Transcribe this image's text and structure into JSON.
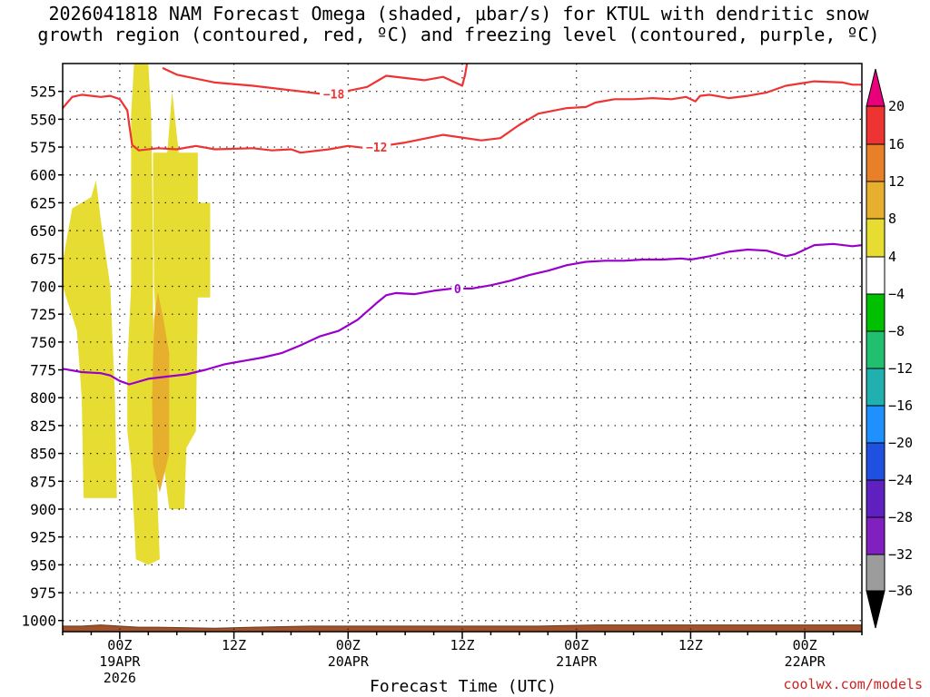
{
  "title": {
    "line1": "2026041818 NAM Forecast Omega (shaded, μbar/s) for KTUL with dendritic snow",
    "line2": "growth region (contoured, red, ºC) and freezing level (contoured, purple, ºC)"
  },
  "credit": "coolwx.com/models",
  "colors": {
    "dgz_contour": "#ee3333",
    "freezing_contour": "#9900cc",
    "ground": "#a0522d",
    "omega_4_8": "#e6dc32",
    "omega_8_12": "#e6af2d",
    "grid": "#222222"
  },
  "chart_data": {
    "type": "heatmap",
    "xlabel": "Forecast Time (UTC)",
    "x_range_hours": [
      -6,
      78
    ],
    "x_ticks": [
      {
        "hour": 0,
        "label": "00Z",
        "sub1": "19APR",
        "sub2": "2026"
      },
      {
        "hour": 12,
        "label": "12Z",
        "sub1": "",
        "sub2": ""
      },
      {
        "hour": 24,
        "label": "00Z",
        "sub1": "20APR",
        "sub2": ""
      },
      {
        "hour": 36,
        "label": "12Z",
        "sub1": "",
        "sub2": ""
      },
      {
        "hour": 48,
        "label": "00Z",
        "sub1": "21APR",
        "sub2": ""
      },
      {
        "hour": 60,
        "label": "12Z",
        "sub1": "",
        "sub2": ""
      },
      {
        "hour": 72,
        "label": "00Z",
        "sub1": "22APR",
        "sub2": ""
      }
    ],
    "ylabel": "",
    "y_ticks": [
      525,
      550,
      575,
      600,
      625,
      650,
      675,
      700,
      725,
      750,
      775,
      800,
      825,
      850,
      875,
      900,
      925,
      950,
      975,
      1000
    ],
    "y_range_hpa": [
      500,
      1010
    ],
    "omega_fields": [
      {
        "range": "4 to 8",
        "color": "#e6dc32",
        "polygon": [
          [
            -6,
            678
          ],
          [
            -5,
            630
          ],
          [
            -3,
            620
          ],
          [
            -2.5,
            605
          ],
          [
            -2,
            640
          ],
          [
            -1,
            700
          ],
          [
            -0.5,
            800
          ],
          [
            -0.3,
            890
          ],
          [
            -3.8,
            890
          ],
          [
            -4,
            800
          ],
          [
            -4.5,
            740
          ],
          [
            -6,
            700
          ]
        ]
      },
      {
        "range": "4 to 8",
        "color": "#e6dc32",
        "polygon": [
          [
            1.5,
            500
          ],
          [
            3,
            500
          ],
          [
            3.3,
            545
          ],
          [
            3.5,
            660
          ],
          [
            3.5,
            720
          ],
          [
            4,
            900
          ],
          [
            4.2,
            945
          ],
          [
            3,
            950
          ],
          [
            1.7,
            945
          ],
          [
            1.5,
            910
          ],
          [
            1.2,
            860
          ],
          [
            0.8,
            830
          ],
          [
            0.8,
            770
          ],
          [
            1.2,
            700
          ],
          [
            1.2,
            545
          ]
        ]
      },
      {
        "range": "4 to 8",
        "color": "#e6dc32",
        "polygon": [
          [
            3.5,
            580
          ],
          [
            5,
            580
          ],
          [
            5.5,
            525
          ],
          [
            6.2,
            580
          ],
          [
            8.2,
            580
          ],
          [
            8.2,
            625
          ],
          [
            9.5,
            625
          ],
          [
            9.5,
            710
          ],
          [
            8.2,
            710
          ],
          [
            8,
            830
          ],
          [
            7,
            845
          ],
          [
            6.8,
            900
          ],
          [
            5.2,
            900
          ],
          [
            4.2,
            830
          ],
          [
            4,
            770
          ],
          [
            3.6,
            700
          ],
          [
            3.5,
            600
          ]
        ]
      },
      {
        "range": "8 to 12",
        "color": "#e6af2d",
        "polygon": [
          [
            4,
            705
          ],
          [
            4.6,
            730
          ],
          [
            5.2,
            760
          ],
          [
            5.2,
            850
          ],
          [
            4.2,
            885
          ],
          [
            3.5,
            860
          ],
          [
            3.4,
            800
          ],
          [
            3.6,
            730
          ]
        ]
      }
    ],
    "contours": [
      {
        "name": "-18",
        "color": "#ee3333",
        "label_hour": 22.5,
        "points": [
          [
            4.5,
            504
          ],
          [
            6,
            510
          ],
          [
            10,
            517
          ],
          [
            14,
            520
          ],
          [
            19,
            525
          ],
          [
            22,
            528
          ],
          [
            26,
            521
          ],
          [
            28,
            511
          ],
          [
            32,
            515
          ],
          [
            34,
            512
          ],
          [
            36,
            520
          ],
          [
            36.3,
            510
          ],
          [
            36.5,
            500
          ]
        ]
      },
      {
        "name": "-12",
        "color": "#ee3333",
        "label_hour": 27,
        "points": [
          [
            -6,
            540
          ],
          [
            -5,
            530
          ],
          [
            -4,
            528
          ],
          [
            -2,
            530
          ],
          [
            -1,
            529
          ],
          [
            0,
            532
          ],
          [
            0.8,
            542
          ],
          [
            1,
            555
          ],
          [
            1.3,
            573
          ],
          [
            2,
            578
          ],
          [
            4,
            576
          ],
          [
            6,
            577
          ],
          [
            8,
            574
          ],
          [
            10,
            577
          ],
          [
            14,
            576
          ],
          [
            16,
            578
          ],
          [
            18,
            577
          ],
          [
            19,
            580
          ],
          [
            22,
            577
          ],
          [
            24,
            574
          ],
          [
            26,
            576
          ],
          [
            30,
            571
          ],
          [
            34,
            564
          ],
          [
            38,
            569
          ],
          [
            40,
            567
          ],
          [
            42,
            555
          ],
          [
            44,
            545
          ],
          [
            47,
            540
          ],
          [
            49,
            539
          ],
          [
            50,
            535
          ],
          [
            52,
            532
          ],
          [
            54,
            532
          ],
          [
            56,
            531
          ],
          [
            58,
            532
          ],
          [
            59.5,
            530
          ],
          [
            60.5,
            534
          ],
          [
            61,
            529
          ],
          [
            62,
            528
          ],
          [
            64,
            531
          ],
          [
            66,
            529
          ],
          [
            68,
            526
          ],
          [
            70,
            520
          ],
          [
            73,
            516
          ],
          [
            76,
            517
          ],
          [
            77,
            519
          ],
          [
            78,
            519
          ]
        ]
      },
      {
        "name": "0",
        "color": "#9900cc",
        "label_hour": 35.5,
        "points": [
          [
            -6,
            774
          ],
          [
            -4,
            777
          ],
          [
            -2,
            778
          ],
          [
            -1,
            780
          ],
          [
            0,
            785
          ],
          [
            1,
            788
          ],
          [
            3,
            783
          ],
          [
            5,
            781
          ],
          [
            7,
            779
          ],
          [
            9,
            775
          ],
          [
            11,
            770
          ],
          [
            13,
            767
          ],
          [
            15,
            764
          ],
          [
            17,
            760
          ],
          [
            19,
            753
          ],
          [
            21,
            745
          ],
          [
            23,
            740
          ],
          [
            25,
            730
          ],
          [
            27,
            715
          ],
          [
            28,
            708
          ],
          [
            29,
            706
          ],
          [
            31,
            707
          ],
          [
            33,
            704
          ],
          [
            35,
            702
          ],
          [
            37,
            702
          ],
          [
            39,
            699
          ],
          [
            41,
            695
          ],
          [
            43,
            690
          ],
          [
            45,
            686
          ],
          [
            47,
            681
          ],
          [
            49,
            678
          ],
          [
            51,
            677
          ],
          [
            53,
            677
          ],
          [
            55,
            676
          ],
          [
            57,
            676
          ],
          [
            59,
            675
          ],
          [
            60,
            676
          ],
          [
            62,
            673
          ],
          [
            64,
            669
          ],
          [
            66,
            667
          ],
          [
            68,
            668
          ],
          [
            70,
            673
          ],
          [
            71,
            671
          ],
          [
            73,
            663
          ],
          [
            75,
            662
          ],
          [
            77,
            664
          ],
          [
            78,
            663
          ]
        ]
      }
    ],
    "ground_hpa": [
      [
        -6,
        1005
      ],
      [
        -4,
        1005
      ],
      [
        -2,
        1004
      ],
      [
        0,
        1005
      ],
      [
        2,
        1006
      ],
      [
        4,
        1006
      ],
      [
        10,
        1007
      ],
      [
        14,
        1006
      ],
      [
        20,
        1005
      ],
      [
        26,
        1005
      ],
      [
        36,
        1005
      ],
      [
        44,
        1005
      ],
      [
        50,
        1004
      ],
      [
        58,
        1004
      ],
      [
        64,
        1004
      ],
      [
        72,
        1004
      ],
      [
        78,
        1004
      ]
    ],
    "colorbar": {
      "labels": [
        20,
        16,
        12,
        8,
        4,
        -4,
        -8,
        -12,
        -16,
        -20,
        -24,
        -28,
        -32,
        -36
      ],
      "bands": [
        "#ee3333",
        "#e8802a",
        "#e6af2d",
        "#e6dc32",
        "#ffffff",
        "#00c000",
        "#20c070",
        "#20b0b0",
        "#2090ff",
        "#2050e0",
        "#6020c0",
        "#8020c0",
        "#9c9c9c"
      ],
      "top_arrow_color": "#e8007a",
      "bottom_arrow_color": "#000000"
    }
  }
}
